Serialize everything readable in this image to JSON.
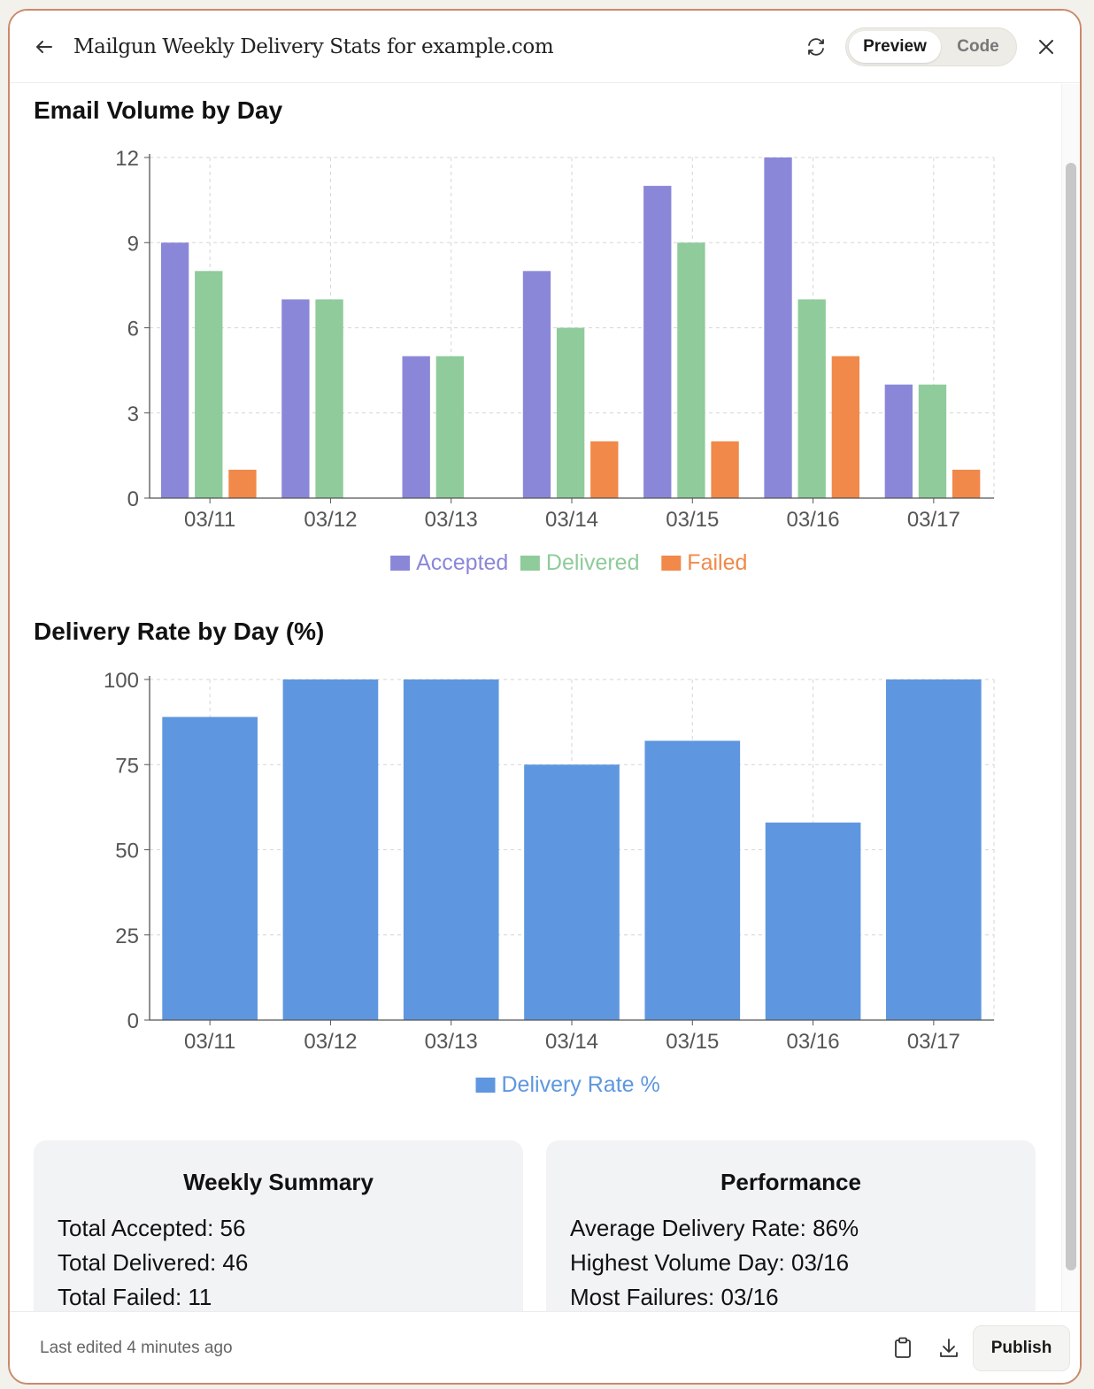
{
  "header": {
    "title": "Mailgun Weekly Delivery Stats for example.com",
    "preview_label": "Preview",
    "code_label": "Code"
  },
  "chart_data": [
    {
      "type": "bar",
      "title": "Email Volume by Day",
      "categories": [
        "03/11",
        "03/12",
        "03/13",
        "03/14",
        "03/15",
        "03/16",
        "03/17"
      ],
      "series": [
        {
          "name": "Accepted",
          "color": "#8b87d8",
          "values": [
            9,
            7,
            5,
            8,
            11,
            12,
            4
          ]
        },
        {
          "name": "Delivered",
          "color": "#8fcb9b",
          "values": [
            8,
            7,
            5,
            6,
            9,
            7,
            4
          ]
        },
        {
          "name": "Failed",
          "color": "#f0894a",
          "values": [
            1,
            0,
            0,
            2,
            2,
            5,
            1
          ]
        }
      ],
      "yticks": [
        0,
        3,
        6,
        9,
        12
      ],
      "ylim": [
        0,
        12
      ],
      "grid": true,
      "legend": "bottom"
    },
    {
      "type": "bar",
      "title": "Delivery Rate by Day (%)",
      "categories": [
        "03/11",
        "03/12",
        "03/13",
        "03/14",
        "03/15",
        "03/16",
        "03/17"
      ],
      "series": [
        {
          "name": "Delivery Rate %",
          "color": "#5e97df",
          "values": [
            89,
            100,
            100,
            75,
            82,
            58,
            100
          ]
        }
      ],
      "yticks": [
        0,
        25,
        50,
        75,
        100
      ],
      "ylim": [
        0,
        100
      ],
      "grid": true,
      "legend": "bottom"
    }
  ],
  "summary": {
    "title": "Weekly Summary",
    "lines": [
      "Total Accepted: 56",
      "Total Delivered: 46",
      "Total Failed: 11"
    ]
  },
  "performance": {
    "title": "Performance",
    "lines": [
      "Average Delivery Rate: 86%",
      "Highest Volume Day: 03/16",
      "Most Failures: 03/16"
    ]
  },
  "footer": {
    "edited": "Last edited 4 minutes ago",
    "publish_label": "Publish"
  }
}
